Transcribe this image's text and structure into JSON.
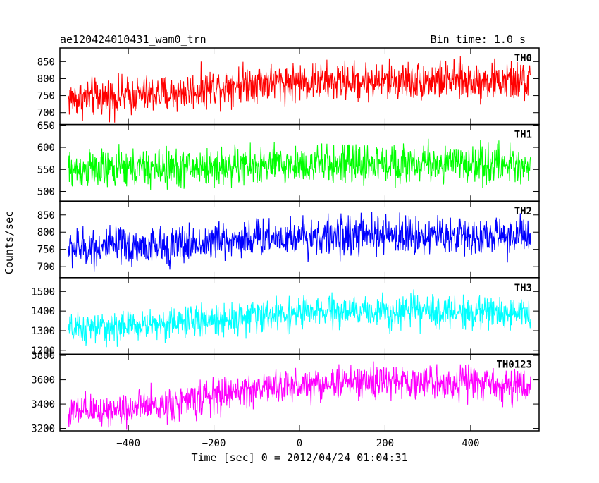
{
  "header": {
    "title": "ae120424010431_wam0_trn",
    "bin_time": "Bin time: 1.0 s"
  },
  "axes": {
    "xlabel": "Time [sec] 0 = 2012/04/24 01:04:31",
    "ylabel": "Counts/sec"
  },
  "chart_data": {
    "type": "line",
    "title": "ae120424010431_wam0_trn",
    "subtitle": "Bin time: 1.0 s",
    "xlabel": "Time [sec] 0 = 2012/04/24 01:04:31",
    "ylabel": "Counts/sec",
    "xlim": [
      -560,
      560
    ],
    "x_range": [
      -540,
      540
    ],
    "x_ticks": [
      -400,
      -200,
      0,
      200,
      400
    ],
    "grid": false,
    "legend": "none",
    "panels": [
      {
        "name": "TH0",
        "color": "#ff0000",
        "ylim": [
          665,
          890
        ],
        "y_ticks": [
          700,
          750,
          800,
          850
        ],
        "trend": [
          [
            -540,
            740
          ],
          [
            -300,
            755
          ],
          [
            -120,
            790
          ],
          [
            60,
            790
          ],
          [
            300,
            795
          ],
          [
            540,
            790
          ]
        ],
        "noise": 28
      },
      {
        "name": "TH1",
        "color": "#00ff00",
        "ylim": [
          478,
          652
        ],
        "y_ticks": [
          500,
          550,
          600,
          650
        ],
        "trend": [
          [
            -540,
            548
          ],
          [
            -200,
            555
          ],
          [
            0,
            560
          ],
          [
            300,
            563
          ],
          [
            540,
            560
          ]
        ],
        "noise": 22
      },
      {
        "name": "TH2",
        "color": "#0000ff",
        "ylim": [
          668,
          890
        ],
        "y_ticks": [
          700,
          750,
          800,
          850
        ],
        "trend": [
          [
            -540,
            755
          ],
          [
            -300,
            760
          ],
          [
            -100,
            785
          ],
          [
            100,
            790
          ],
          [
            540,
            790
          ]
        ],
        "noise": 28
      },
      {
        "name": "TH3",
        "color": "#00ffff",
        "ylim": [
          1180,
          1570
        ],
        "y_ticks": [
          1200,
          1300,
          1400,
          1500
        ],
        "trend": [
          [
            -540,
            1300
          ],
          [
            -200,
            1355
          ],
          [
            0,
            1390
          ],
          [
            200,
            1400
          ],
          [
            540,
            1390
          ]
        ],
        "noise": 40
      },
      {
        "name": "TH0123",
        "color": "#ff00ff",
        "ylim": [
          3180,
          3810
        ],
        "y_ticks": [
          3200,
          3400,
          3600,
          3800
        ],
        "trend": [
          [
            -540,
            3320
          ],
          [
            -300,
            3400
          ],
          [
            -100,
            3530
          ],
          [
            100,
            3580
          ],
          [
            400,
            3580
          ],
          [
            540,
            3530
          ]
        ],
        "noise": 70
      }
    ]
  }
}
